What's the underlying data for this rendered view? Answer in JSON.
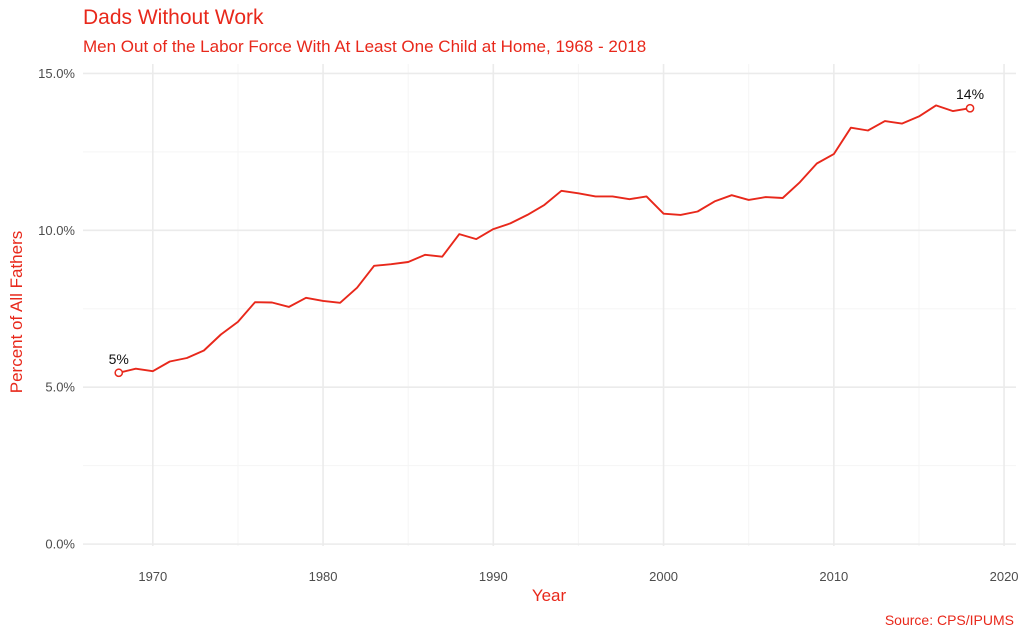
{
  "chart_data": {
    "type": "line",
    "title": "Dads Without Work",
    "subtitle": "Men Out of the Labor Force With At Least One Child at Home, 1968 - 2018",
    "caption": "Source: CPS/IPUMS",
    "xlabel": "Year",
    "ylabel": "Percent of All Fathers",
    "xlim": [
      1965.9,
      2020.7
    ],
    "ylim": [
      -0.06,
      15.3
    ],
    "x_ticks": [
      1970,
      1980,
      1990,
      2000,
      2010,
      2020
    ],
    "x_tick_labels": [
      "1970",
      "1980",
      "1990",
      "2000",
      "2010",
      "2020"
    ],
    "y_ticks": [
      0,
      5,
      10,
      15
    ],
    "y_tick_labels": [
      "0.0%",
      "5.0%",
      "10.0%",
      "15.0%"
    ],
    "grid": true,
    "legend": "none",
    "series": [
      {
        "color": "#e8281b",
        "x": [
          1968,
          1969,
          1970,
          1971,
          1972,
          1973,
          1974,
          1975,
          1976,
          1977,
          1978,
          1979,
          1980,
          1981,
          1982,
          1983,
          1984,
          1985,
          1986,
          1987,
          1988,
          1989,
          1990,
          1991,
          1992,
          1993,
          1994,
          1995,
          1996,
          1997,
          1998,
          1999,
          2000,
          2001,
          2002,
          2003,
          2004,
          2005,
          2006,
          2007,
          2008,
          2009,
          2010,
          2011,
          2012,
          2013,
          2014,
          2015,
          2016,
          2017,
          2018
        ],
        "values": [
          5.46,
          5.59,
          5.51,
          5.82,
          5.93,
          6.17,
          6.68,
          7.08,
          7.71,
          7.7,
          7.56,
          7.85,
          7.75,
          7.69,
          8.17,
          8.87,
          8.92,
          8.99,
          9.22,
          9.16,
          9.88,
          9.72,
          10.04,
          10.22,
          10.49,
          10.81,
          11.26,
          11.18,
          11.08,
          11.08,
          10.99,
          11.08,
          10.53,
          10.49,
          10.6,
          10.92,
          11.12,
          10.97,
          11.06,
          11.03,
          11.53,
          12.13,
          12.43,
          13.27,
          13.18,
          13.48,
          13.4,
          13.63,
          13.98,
          13.8,
          13.89
        ]
      }
    ],
    "annotations": [
      {
        "x": 1968,
        "y": 5.46,
        "text": "5%"
      },
      {
        "x": 2018,
        "y": 13.89,
        "text": "14%"
      }
    ]
  }
}
